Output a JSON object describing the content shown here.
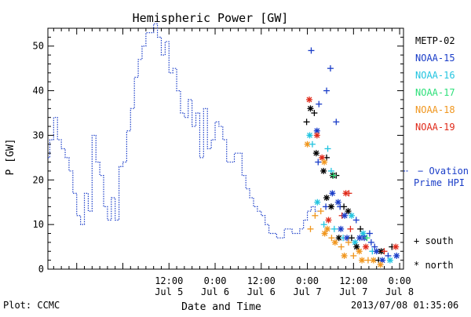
{
  "footer": {
    "plot_credit": "Plot: CCMC",
    "timestamp": "2013/07/08 01:35:06"
  },
  "chart_data": {
    "type": "scatter",
    "title": "Hemispheric Power [GW]",
    "xlabel": "Date and Time",
    "ylabel": "P [GW]",
    "x_unit": "hours from 2013-07-04 00:00",
    "xlim": [
      4.5,
      97
    ],
    "ylim": [
      0,
      54
    ],
    "y_ticks": [
      0,
      10,
      20,
      30,
      40,
      50
    ],
    "x_ticks": [
      {
        "x": 36,
        "time": "12:00",
        "date": "Jul 5"
      },
      {
        "x": 48,
        "time": "0:00",
        "date": "Jul 6"
      },
      {
        "x": 60,
        "time": "12:00",
        "date": "Jul 6"
      },
      {
        "x": 72,
        "time": "0:00",
        "date": "Jul 7"
      },
      {
        "x": 84,
        "time": "12:00",
        "date": "Jul 7"
      },
      {
        "x": 96,
        "time": "0:00",
        "date": "Jul 8"
      }
    ],
    "grid": false,
    "legend_position": "right",
    "satellites": [
      {
        "name": "METP-02",
        "color": "#000000"
      },
      {
        "name": "NOAA-15",
        "color": "#1a3dc8"
      },
      {
        "name": "NOAA-16",
        "color": "#22c4e0"
      },
      {
        "name": "NOAA-17",
        "color": "#2ee07a"
      },
      {
        "name": "NOAA-18",
        "color": "#f0961e"
      },
      {
        "name": "NOAA-19",
        "color": "#e02a1a"
      }
    ],
    "ovation": {
      "label_line1": "Ovation",
      "label_line2": "Prime HPI",
      "color": "#1a3dc8",
      "marker_value": 22,
      "step_series": [
        [
          4.5,
          25
        ],
        [
          5,
          29
        ],
        [
          6,
          34
        ],
        [
          7,
          29
        ],
        [
          8,
          27
        ],
        [
          9,
          25
        ],
        [
          10,
          22
        ],
        [
          11,
          17
        ],
        [
          12,
          12
        ],
        [
          13,
          10
        ],
        [
          14,
          17
        ],
        [
          15,
          13
        ],
        [
          16,
          30
        ],
        [
          17,
          24
        ],
        [
          18,
          21
        ],
        [
          19,
          14
        ],
        [
          20,
          11
        ],
        [
          21,
          16
        ],
        [
          22,
          11
        ],
        [
          23,
          23
        ],
        [
          24,
          24
        ],
        [
          25,
          31
        ],
        [
          26,
          36
        ],
        [
          27,
          43
        ],
        [
          28,
          47
        ],
        [
          29,
          50
        ],
        [
          30,
          53
        ],
        [
          32,
          55
        ],
        [
          33,
          52
        ],
        [
          34,
          48
        ],
        [
          35,
          51
        ],
        [
          36,
          44
        ],
        [
          37,
          45
        ],
        [
          38,
          40
        ],
        [
          39,
          35
        ],
        [
          40,
          34
        ],
        [
          41,
          38
        ],
        [
          42,
          32
        ],
        [
          43,
          35
        ],
        [
          44,
          25
        ],
        [
          45,
          36
        ],
        [
          46,
          27
        ],
        [
          47,
          29
        ],
        [
          48,
          33
        ],
        [
          49,
          32
        ],
        [
          50,
          29
        ],
        [
          51,
          24
        ],
        [
          53,
          26
        ],
        [
          55,
          21
        ],
        [
          56,
          18
        ],
        [
          57,
          16
        ],
        [
          58,
          14
        ],
        [
          59,
          13
        ],
        [
          60,
          12
        ],
        [
          61,
          10
        ],
        [
          62,
          8
        ],
        [
          64,
          7
        ],
        [
          66,
          9
        ],
        [
          68,
          8
        ],
        [
          70,
          9
        ],
        [
          71,
          11
        ],
        [
          72,
          13
        ],
        [
          73,
          14
        ],
        [
          74,
          13
        ]
      ]
    },
    "marker_legend": [
      {
        "symbol": "+",
        "label": "south"
      },
      {
        "symbol": "*",
        "label": "north"
      }
    ],
    "points": [
      {
        "sat": "NOAA-15",
        "hemi": "south",
        "x": 73.0,
        "y": 49
      },
      {
        "sat": "NOAA-15",
        "hemi": "south",
        "x": 78.0,
        "y": 45
      },
      {
        "sat": "NOAA-15",
        "hemi": "south",
        "x": 77.0,
        "y": 40
      },
      {
        "sat": "NOAA-15",
        "hemi": "south",
        "x": 75.0,
        "y": 37
      },
      {
        "sat": "NOAA-19",
        "hemi": "north",
        "x": 72.5,
        "y": 38
      },
      {
        "sat": "METP-02",
        "hemi": "south",
        "x": 73.8,
        "y": 35
      },
      {
        "sat": "METP-02",
        "hemi": "north",
        "x": 72.8,
        "y": 36
      },
      {
        "sat": "METP-02",
        "hemi": "south",
        "x": 71.8,
        "y": 33
      },
      {
        "sat": "NOAA-15",
        "hemi": "south",
        "x": 79.5,
        "y": 33
      },
      {
        "sat": "NOAA-15",
        "hemi": "north",
        "x": 74.5,
        "y": 31
      },
      {
        "sat": "NOAA-16",
        "hemi": "north",
        "x": 72.6,
        "y": 30
      },
      {
        "sat": "NOAA-19",
        "hemi": "north",
        "x": 74.5,
        "y": 30
      },
      {
        "sat": "NOAA-18",
        "hemi": "north",
        "x": 72.0,
        "y": 28
      },
      {
        "sat": "NOAA-16",
        "hemi": "south",
        "x": 73.3,
        "y": 28
      },
      {
        "sat": "NOAA-16",
        "hemi": "south",
        "x": 77.3,
        "y": 27
      },
      {
        "sat": "METP-02",
        "hemi": "north",
        "x": 74.3,
        "y": 26
      },
      {
        "sat": "METP-02",
        "hemi": "south",
        "x": 77.0,
        "y": 25
      },
      {
        "sat": "NOAA-19",
        "hemi": "north",
        "x": 75.8,
        "y": 25
      },
      {
        "sat": "NOAA-18",
        "hemi": "north",
        "x": 76.4,
        "y": 24
      },
      {
        "sat": "NOAA-15",
        "hemi": "south",
        "x": 74.8,
        "y": 24
      },
      {
        "sat": "METP-02",
        "hemi": "north",
        "x": 76.2,
        "y": 22
      },
      {
        "sat": "NOAA-16",
        "hemi": "south",
        "x": 78.2,
        "y": 22
      },
      {
        "sat": "METP-02",
        "hemi": "north",
        "x": 78.6,
        "y": 21
      },
      {
        "sat": "METP-02",
        "hemi": "south",
        "x": 79.5,
        "y": 21
      },
      {
        "sat": "NOAA-17",
        "hemi": "south",
        "x": 78.8,
        "y": 21
      },
      {
        "sat": "NOAA-19",
        "hemi": "north",
        "x": 82.0,
        "y": 17
      },
      {
        "sat": "NOAA-19",
        "hemi": "south",
        "x": 82.8,
        "y": 17
      },
      {
        "sat": "NOAA-15",
        "hemi": "north",
        "x": 78.5,
        "y": 17
      },
      {
        "sat": "METP-02",
        "hemi": "north",
        "x": 77.0,
        "y": 16
      },
      {
        "sat": "NOAA-15",
        "hemi": "south",
        "x": 76.8,
        "y": 14
      },
      {
        "sat": "NOAA-16",
        "hemi": "north",
        "x": 74.6,
        "y": 15
      },
      {
        "sat": "NOAA-15",
        "hemi": "north",
        "x": 80.0,
        "y": 15
      },
      {
        "sat": "METP-02",
        "hemi": "north",
        "x": 78.2,
        "y": 14
      },
      {
        "sat": "NOAA-15",
        "hemi": "south",
        "x": 80.5,
        "y": 14
      },
      {
        "sat": "METP-02",
        "hemi": "south",
        "x": 81.5,
        "y": 14
      },
      {
        "sat": "METP-02",
        "hemi": "north",
        "x": 82.6,
        "y": 13
      },
      {
        "sat": "NOAA-19",
        "hemi": "south",
        "x": 81.0,
        "y": 12
      },
      {
        "sat": "NOAA-15",
        "hemi": "north",
        "x": 81.7,
        "y": 12
      },
      {
        "sat": "NOAA-16",
        "hemi": "north",
        "x": 83.5,
        "y": 12
      },
      {
        "sat": "NOAA-19",
        "hemi": "north",
        "x": 77.5,
        "y": 11
      },
      {
        "sat": "NOAA-15",
        "hemi": "south",
        "x": 84.7,
        "y": 11
      },
      {
        "sat": "NOAA-18",
        "hemi": "south",
        "x": 74.0,
        "y": 12
      },
      {
        "sat": "NOAA-18",
        "hemi": "south",
        "x": 75.5,
        "y": 13
      },
      {
        "sat": "NOAA-16",
        "hemi": "south",
        "x": 76.3,
        "y": 10
      },
      {
        "sat": "NOAA-18",
        "hemi": "north",
        "x": 77.2,
        "y": 9
      },
      {
        "sat": "NOAA-18",
        "hemi": "south",
        "x": 72.8,
        "y": 9
      },
      {
        "sat": "NOAA-16",
        "hemi": "south",
        "x": 79.0,
        "y": 9
      },
      {
        "sat": "NOAA-15",
        "hemi": "north",
        "x": 80.7,
        "y": 9
      },
      {
        "sat": "NOAA-19",
        "hemi": "south",
        "x": 83.2,
        "y": 9
      },
      {
        "sat": "METP-02",
        "hemi": "south",
        "x": 85.8,
        "y": 9
      },
      {
        "sat": "NOAA-16",
        "hemi": "north",
        "x": 86.5,
        "y": 8
      },
      {
        "sat": "NOAA-15",
        "hemi": "south",
        "x": 88.2,
        "y": 8
      },
      {
        "sat": "NOAA-18",
        "hemi": "north",
        "x": 76.5,
        "y": 8
      },
      {
        "sat": "NOAA-18",
        "hemi": "south",
        "x": 78.3,
        "y": 7
      },
      {
        "sat": "METP-02",
        "hemi": "north",
        "x": 80.2,
        "y": 7
      },
      {
        "sat": "NOAA-16",
        "hemi": "south",
        "x": 81.3,
        "y": 7
      },
      {
        "sat": "NOAA-15",
        "hemi": "north",
        "x": 82.3,
        "y": 7
      },
      {
        "sat": "NOAA-18",
        "hemi": "south",
        "x": 82.7,
        "y": 6
      },
      {
        "sat": "METP-02",
        "hemi": "south",
        "x": 83.5,
        "y": 7
      },
      {
        "sat": "NOAA-16",
        "hemi": "north",
        "x": 84.4,
        "y": 6
      },
      {
        "sat": "NOAA-15",
        "hemi": "north",
        "x": 85.6,
        "y": 7
      },
      {
        "sat": "NOAA-15",
        "hemi": "north",
        "x": 86.8,
        "y": 7
      },
      {
        "sat": "NOAA-17",
        "hemi": "south",
        "x": 87.5,
        "y": 7
      },
      {
        "sat": "NOAA-15",
        "hemi": "south",
        "x": 88.6,
        "y": 6
      },
      {
        "sat": "NOAA-19",
        "hemi": "north",
        "x": 87.2,
        "y": 5
      },
      {
        "sat": "NOAA-18",
        "hemi": "north",
        "x": 79.2,
        "y": 6
      },
      {
        "sat": "NOAA-18",
        "hemi": "south",
        "x": 80.8,
        "y": 5
      },
      {
        "sat": "METP-02",
        "hemi": "north",
        "x": 84.8,
        "y": 5
      },
      {
        "sat": "NOAA-18",
        "hemi": "north",
        "x": 85.5,
        "y": 4
      },
      {
        "sat": "NOAA-15",
        "hemi": "south",
        "x": 89.5,
        "y": 5
      },
      {
        "sat": "NOAA-16",
        "hemi": "south",
        "x": 88.9,
        "y": 4
      },
      {
        "sat": "NOAA-15",
        "hemi": "north",
        "x": 90.0,
        "y": 4
      },
      {
        "sat": "METP-02",
        "hemi": "north",
        "x": 91.2,
        "y": 4
      },
      {
        "sat": "NOAA-19",
        "hemi": "south",
        "x": 92.0,
        "y": 4
      },
      {
        "sat": "NOAA-18",
        "hemi": "north",
        "x": 81.6,
        "y": 3
      },
      {
        "sat": "NOAA-18",
        "hemi": "south",
        "x": 84.0,
        "y": 3
      },
      {
        "sat": "NOAA-18",
        "hemi": "north",
        "x": 86.2,
        "y": 2
      },
      {
        "sat": "NOAA-18",
        "hemi": "south",
        "x": 87.8,
        "y": 2
      },
      {
        "sat": "NOAA-18",
        "hemi": "north",
        "x": 89.2,
        "y": 2
      },
      {
        "sat": "METP-02",
        "hemi": "south",
        "x": 90.5,
        "y": 2
      },
      {
        "sat": "NOAA-15",
        "hemi": "north",
        "x": 91.5,
        "y": 2
      },
      {
        "sat": "NOAA-15",
        "hemi": "south",
        "x": 93.0,
        "y": 3
      },
      {
        "sat": "METP-02",
        "hemi": "south",
        "x": 94.0,
        "y": 5
      },
      {
        "sat": "NOAA-16",
        "hemi": "north",
        "x": 93.5,
        "y": 2
      },
      {
        "sat": "NOAA-15",
        "hemi": "north",
        "x": 95.2,
        "y": 3
      },
      {
        "sat": "NOAA-19",
        "hemi": "north",
        "x": 95.0,
        "y": 5
      },
      {
        "sat": "NOAA-18",
        "hemi": "north",
        "x": 91.0,
        "y": 1
      }
    ]
  }
}
